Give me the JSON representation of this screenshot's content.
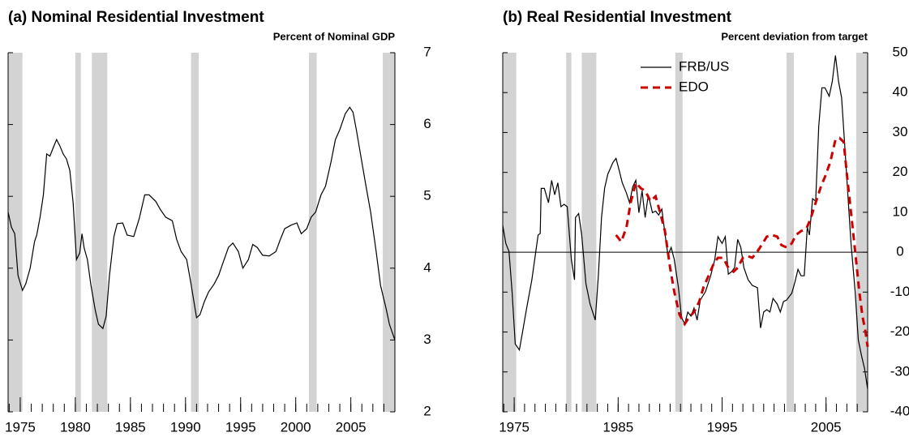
{
  "chart_data": [
    {
      "type": "line",
      "title": "(a) Nominal Residential Investment",
      "ylabel": "Percent of Nominal GDP",
      "xlim": [
        1973.9,
        2009.0
      ],
      "xticks": [
        1975,
        1980,
        1985,
        1990,
        1995,
        2000,
        2005
      ],
      "xminorticks": [
        1974,
        1975,
        1976,
        1977,
        1978,
        1979,
        1980,
        1981,
        1982,
        1983,
        1984,
        1985,
        1986,
        1987,
        1988,
        1989,
        1990,
        1991,
        1992,
        1993,
        1994,
        1995,
        1996,
        1997,
        1998,
        1999,
        2000,
        2001,
        2002,
        2003,
        2004,
        2005,
        2006,
        2007,
        2008
      ],
      "ylim": [
        2,
        7
      ],
      "yticks": [
        2,
        3,
        4,
        5,
        6,
        7
      ],
      "recessions": [
        [
          1973.9,
          1975.2
        ],
        [
          1980.0,
          1980.5
        ],
        [
          1981.5,
          1982.9
        ],
        [
          1990.5,
          1991.2
        ],
        [
          2001.2,
          2001.9
        ],
        [
          2007.9,
          2009.0
        ]
      ],
      "recession_color": "#d3d3d3",
      "series": [
        {
          "color": "#000000",
          "dash": false,
          "x": [
            1973.9,
            1974.2,
            1974.5,
            1974.8,
            1975.2,
            1975.5,
            1975.9,
            1976.3,
            1976.5,
            1976.8,
            1977.1,
            1977.4,
            1977.7,
            1978.0,
            1978.3,
            1978.6,
            1978.9,
            1979.2,
            1979.5,
            1979.8,
            1980.1,
            1980.4,
            1980.6,
            1980.8,
            1981.1,
            1981.4,
            1981.8,
            1982.1,
            1982.5,
            1982.8,
            1983.1,
            1983.5,
            1983.8,
            1984.3,
            1984.7,
            1985.3,
            1985.8,
            1986.3,
            1986.7,
            1987.3,
            1987.7,
            1988.2,
            1988.8,
            1989.2,
            1989.6,
            1990.1,
            1990.5,
            1991.0,
            1991.3,
            1991.7,
            1992.1,
            1992.6,
            1993.0,
            1993.5,
            1993.9,
            1994.3,
            1994.8,
            1995.2,
            1995.7,
            1996.1,
            1996.5,
            1997.0,
            1997.6,
            1998.2,
            1998.6,
            1999.0,
            1999.6,
            2000.1,
            2000.5,
            2001.0,
            2001.4,
            2001.8,
            2002.3,
            2002.7,
            2003.2,
            2003.6,
            2004.0,
            2004.5,
            2004.9,
            2005.2,
            2005.5,
            2006.0,
            2006.4,
            2006.8,
            2007.3,
            2007.7,
            2008.2,
            2008.5,
            2009.0
          ],
          "values": [
            4.78,
            4.57,
            4.48,
            3.9,
            3.69,
            3.78,
            4.0,
            4.37,
            4.46,
            4.71,
            5.02,
            5.59,
            5.56,
            5.68,
            5.79,
            5.7,
            5.59,
            5.52,
            5.36,
            4.91,
            4.12,
            4.21,
            4.48,
            4.28,
            4.12,
            3.78,
            3.42,
            3.22,
            3.16,
            3.33,
            3.9,
            4.44,
            4.62,
            4.63,
            4.46,
            4.44,
            4.69,
            5.02,
            5.02,
            4.93,
            4.82,
            4.71,
            4.66,
            4.4,
            4.23,
            4.12,
            3.78,
            3.31,
            3.35,
            3.53,
            3.67,
            3.78,
            3.9,
            4.12,
            4.29,
            4.35,
            4.23,
            4.0,
            4.12,
            4.33,
            4.29,
            4.18,
            4.17,
            4.23,
            4.4,
            4.55,
            4.6,
            4.63,
            4.48,
            4.55,
            4.71,
            4.78,
            5.02,
            5.14,
            5.48,
            5.79,
            5.93,
            6.15,
            6.24,
            6.17,
            5.93,
            5.48,
            5.12,
            4.78,
            4.23,
            3.76,
            3.44,
            3.22,
            3.0
          ]
        }
      ]
    },
    {
      "type": "line",
      "title": "(b) Real Residential Investment",
      "ylabel": "Percent deviation from target",
      "xlim": [
        1973.9,
        2009.0
      ],
      "xticks": [
        1975,
        1985,
        1995,
        2005
      ],
      "xminorticks": [
        1974,
        1975,
        1976,
        1977,
        1978,
        1979,
        1980,
        1981,
        1982,
        1983,
        1984,
        1985,
        1986,
        1987,
        1988,
        1989,
        1990,
        1991,
        1992,
        1993,
        1994,
        1995,
        1996,
        1997,
        1998,
        1999,
        2000,
        2001,
        2002,
        2003,
        2004,
        2005,
        2006,
        2007,
        2008
      ],
      "ylim": [
        -40,
        50
      ],
      "yticks": [
        -40,
        -30,
        -20,
        -10,
        0,
        10,
        20,
        30,
        40,
        50
      ],
      "hline": 0,
      "legend": "upper center",
      "recessions": [
        [
          1973.9,
          1975.2
        ],
        [
          1980.0,
          1980.5
        ],
        [
          1981.5,
          1982.9
        ],
        [
          1990.5,
          1991.2
        ],
        [
          2001.2,
          2001.9
        ],
        [
          2007.9,
          2009.0
        ]
      ],
      "recession_color": "#d3d3d3",
      "series": [
        {
          "name": "FRB/US",
          "color": "#000000",
          "dash": false,
          "x": [
            1973.9,
            1974.2,
            1974.5,
            1974.8,
            1975.1,
            1975.5,
            1975.8,
            1976.2,
            1976.7,
            1977.0,
            1977.3,
            1977.5,
            1977.6,
            1977.9,
            1978.3,
            1978.6,
            1978.9,
            1979.2,
            1979.5,
            1979.8,
            1980.1,
            1980.5,
            1980.8,
            1980.9,
            1981.2,
            1981.5,
            1981.9,
            1982.3,
            1982.8,
            1983.1,
            1983.4,
            1983.7,
            1984.0,
            1984.5,
            1984.8,
            1985.1,
            1985.4,
            1985.8,
            1986.1,
            1986.4,
            1986.7,
            1987.0,
            1987.3,
            1987.6,
            1987.9,
            1988.3,
            1988.6,
            1988.9,
            1989.2,
            1989.5,
            1989.8,
            1990.1,
            1990.4,
            1990.8,
            1991.1,
            1991.4,
            1991.7,
            1992.0,
            1992.3,
            1992.6,
            1992.9,
            1993.4,
            1993.9,
            1994.3,
            1994.6,
            1995.0,
            1995.3,
            1995.6,
            1995.9,
            1996.2,
            1996.5,
            1996.8,
            1997.1,
            1997.5,
            1997.9,
            1998.4,
            1998.7,
            1999.0,
            1999.3,
            1999.6,
            1999.9,
            2000.3,
            2000.6,
            2000.9,
            2001.2,
            2001.7,
            2002.0,
            2002.3,
            2002.6,
            2002.9,
            2003.2,
            2003.4,
            2003.7,
            2004.0,
            2004.3,
            2004.6,
            2004.9,
            2005.3,
            2005.6,
            2005.9,
            2006.2,
            2006.5,
            2006.8,
            2007.1,
            2007.4,
            2007.8,
            2008.1,
            2008.4,
            2008.7,
            2009.0
          ],
          "values": [
            6.7,
            2.2,
            0.2,
            -9.9,
            -23,
            -24.5,
            -20,
            -14,
            -6.9,
            -1.4,
            4.3,
            4.7,
            16,
            16,
            12.4,
            18,
            14.4,
            17.4,
            11.4,
            12,
            11.4,
            -1.8,
            -6.9,
            8.7,
            9.7,
            4.3,
            -7.9,
            -13,
            -17,
            -5.9,
            8.7,
            16,
            19.5,
            22.5,
            23.5,
            20.5,
            17.4,
            14.8,
            12.4,
            16.4,
            18,
            9.9,
            15.4,
            8.7,
            14.4,
            9.9,
            10.3,
            9.3,
            10.8,
            4.7,
            -0.8,
            1.2,
            -1.8,
            -8.9,
            -16.4,
            -18,
            -15,
            -16,
            -14,
            -17,
            -12,
            -9.9,
            -5.9,
            -1.8,
            3.9,
            2.2,
            3.9,
            -5.5,
            -4.9,
            -3.9,
            3.2,
            1.2,
            -3.9,
            -6.9,
            -8.3,
            -8.9,
            -19,
            -15,
            -14.4,
            -15,
            -11.6,
            -13,
            -15,
            -12.4,
            -12,
            -10.3,
            -7.5,
            -4.3,
            -5.9,
            -5.9,
            6.3,
            4.3,
            13.4,
            12.8,
            31.6,
            41.2,
            41.2,
            39.1,
            42.8,
            49.3,
            42.8,
            38.7,
            26.6,
            14.4,
            2.2,
            -9.9,
            -22,
            -25.8,
            -29.2,
            -34.3
          ]
        },
        {
          "name": "EDO",
          "color": "#cc0000",
          "dash": true,
          "x": [
            1984.8,
            1985.3,
            1985.8,
            1986.2,
            1986.7,
            1987.2,
            1987.6,
            1988.1,
            1988.6,
            1989.0,
            1989.5,
            1990.0,
            1990.4,
            1990.9,
            1991.4,
            1991.8,
            1992.3,
            1992.8,
            1993.2,
            1993.7,
            1994.2,
            1994.6,
            1995.1,
            1995.6,
            1996.1,
            1996.5,
            1997.0,
            1997.5,
            1997.9,
            1998.4,
            1998.9,
            1999.3,
            1999.8,
            2000.3,
            2000.7,
            2001.2,
            2001.7,
            2002.1,
            2002.6,
            2003.1,
            2003.5,
            2004.0,
            2004.5,
            2004.9,
            2005.4,
            2005.9,
            2006.3,
            2006.7,
            2007.0,
            2007.3,
            2007.8,
            2008.2,
            2008.5,
            2008.8,
            2009.0
          ],
          "values": [
            4.3,
            2.6,
            6.3,
            12.4,
            17.4,
            16,
            15.4,
            12.8,
            14,
            10.3,
            5.3,
            -3.9,
            -9.9,
            -15.6,
            -18,
            -16.4,
            -15,
            -12.4,
            -8.9,
            -5.9,
            -2.8,
            -1.4,
            -1.4,
            -3.9,
            -4.9,
            -3.9,
            -1.4,
            -1,
            -1.4,
            0.2,
            2.2,
            3.9,
            4.3,
            3.9,
            1.8,
            1.2,
            2.2,
            4.3,
            5.3,
            5.9,
            8.3,
            12.4,
            16.4,
            18.9,
            22.5,
            28.2,
            28.6,
            27.6,
            19.5,
            12.4,
            0.2,
            -9.9,
            -16,
            -20,
            -23.7
          ]
        }
      ]
    }
  ]
}
